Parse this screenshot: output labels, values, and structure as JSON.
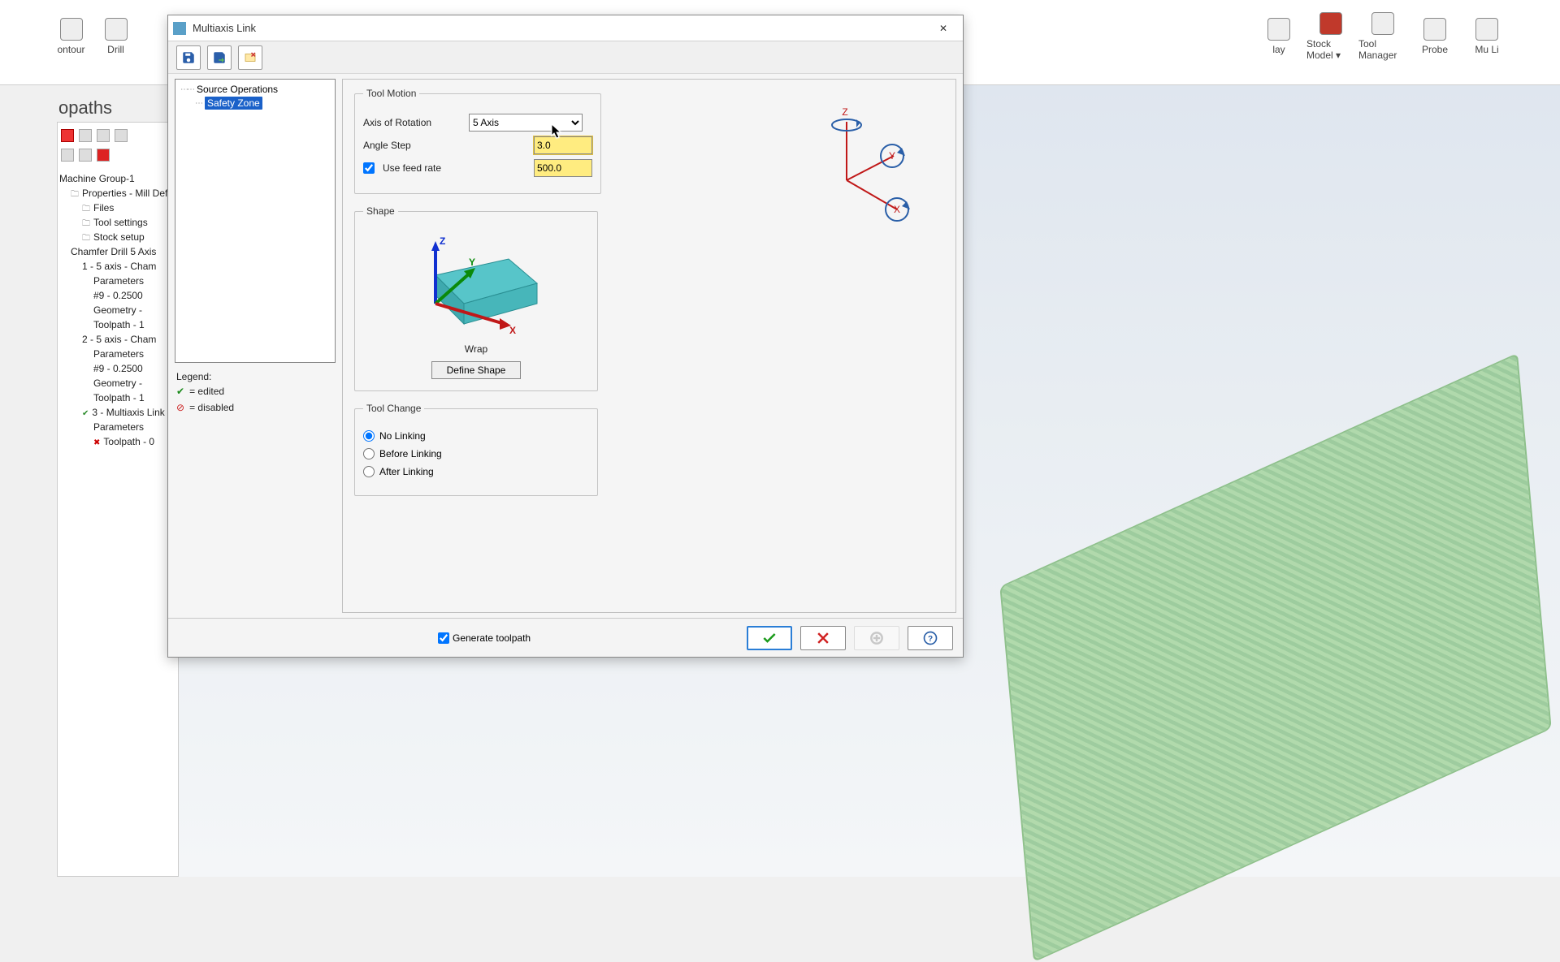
{
  "ribbon": {
    "left": [
      {
        "label": "ontour"
      },
      {
        "label": "Drill"
      }
    ],
    "right": [
      {
        "label": "lay"
      },
      {
        "label": "Stock Model ▾"
      },
      {
        "label": "Tool Manager"
      },
      {
        "label": "Probe"
      },
      {
        "label": "Mu Li"
      }
    ]
  },
  "left_panel": {
    "title": "opaths",
    "tree": [
      {
        "lvl": 0,
        "txt": "Machine Group-1"
      },
      {
        "lvl": 1,
        "txt": "Properties - Mill Defa",
        "cls": "fold"
      },
      {
        "lvl": 2,
        "txt": "Files",
        "cls": "fold"
      },
      {
        "lvl": 2,
        "txt": "Tool settings",
        "cls": "fold"
      },
      {
        "lvl": 2,
        "txt": "Stock setup",
        "cls": "fold"
      },
      {
        "lvl": 1,
        "txt": "Chamfer Drill 5 Axis"
      },
      {
        "lvl": 2,
        "txt": "1 - 5 axis - Cham"
      },
      {
        "lvl": 3,
        "txt": "Parameters"
      },
      {
        "lvl": 3,
        "txt": "#9 - 0.2500"
      },
      {
        "lvl": 3,
        "txt": "Geometry -"
      },
      {
        "lvl": 3,
        "txt": "Toolpath - 1"
      },
      {
        "lvl": 2,
        "txt": "2 - 5 axis - Cham"
      },
      {
        "lvl": 3,
        "txt": "Parameters"
      },
      {
        "lvl": 3,
        "txt": "#9 - 0.2500"
      },
      {
        "lvl": 3,
        "txt": "Geometry -"
      },
      {
        "lvl": 3,
        "txt": "Toolpath - 1"
      },
      {
        "lvl": 2,
        "txt": "3 - Multiaxis Link",
        "cls": "chk"
      },
      {
        "lvl": 3,
        "txt": "Parameters"
      },
      {
        "lvl": 3,
        "txt": "Toolpath - 0",
        "cls": "xred"
      }
    ]
  },
  "dialog": {
    "title": "Multiaxis Link",
    "nav": {
      "items": [
        {
          "label": "Source Operations",
          "selected": false
        },
        {
          "label": "Safety Zone",
          "selected": true
        }
      ]
    },
    "legend": {
      "title": "Legend:",
      "edited": "= edited",
      "disabled": "= disabled"
    },
    "tool_motion": {
      "title": "Tool Motion",
      "axis_label": "Axis of Rotation",
      "axis_value": "5 Axis",
      "angle_label": "Angle Step",
      "angle_value": "3.0",
      "feed_label": "Use feed rate",
      "feed_checked": true,
      "feed_value": "500.0"
    },
    "shape": {
      "title": "Shape",
      "caption": "Wrap",
      "button": "Define Shape"
    },
    "tool_change": {
      "title": "Tool Change",
      "opts": [
        {
          "label": "No Linking",
          "checked": true
        },
        {
          "label": "Before Linking",
          "checked": false
        },
        {
          "label": "After Linking",
          "checked": false
        }
      ]
    },
    "footer": {
      "generate_label": "Generate toolpath",
      "generate_checked": true
    }
  }
}
